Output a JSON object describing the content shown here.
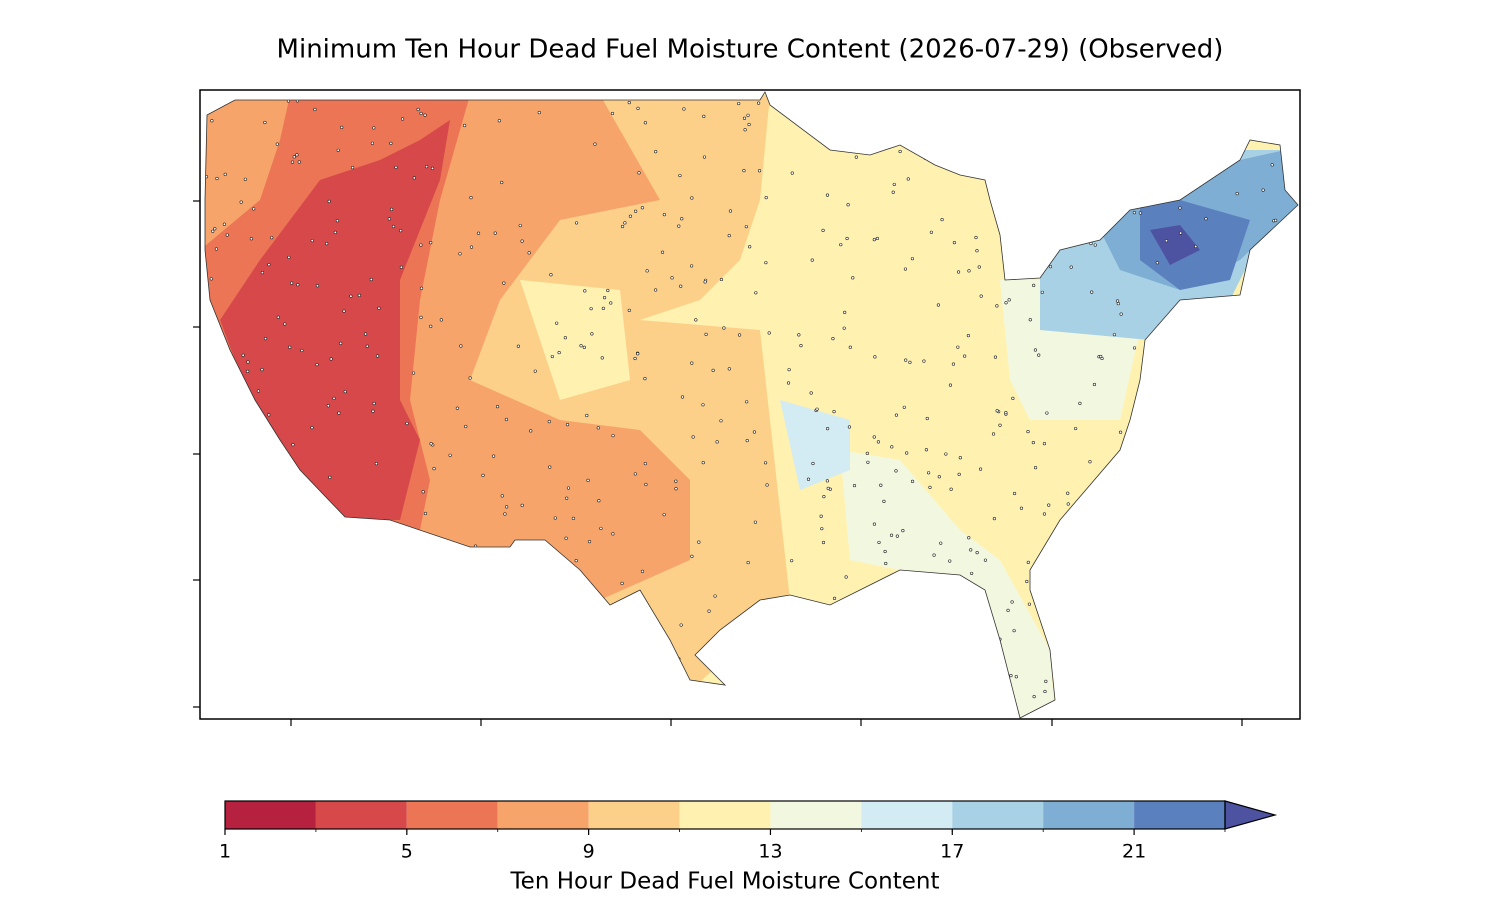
{
  "title": "Minimum Ten Hour Dead Fuel Moisture Content (2026-07-29) (Observed)",
  "map": {
    "field_values": [
      12,
      10,
      8,
      6,
      4,
      11,
      14,
      14,
      15,
      18,
      20,
      22,
      24
    ]
  },
  "colorbar": {
    "label": "Ten Hour Dead Fuel Moisture Content",
    "levels": [
      1,
      3,
      5,
      7,
      9,
      11,
      13,
      15,
      17,
      19,
      21,
      23
    ],
    "colors": [
      "#b5213f",
      "#d6484a",
      "#ec7555",
      "#f7a46b",
      "#fdd08a",
      "#fff2b0",
      "#f2f8e0",
      "#d3ebf2",
      "#a8d1e5",
      "#7eaed3",
      "#5b80be"
    ],
    "extend_color": "#4d52a1",
    "ticks": [
      1,
      5,
      9,
      13,
      17,
      21
    ]
  }
}
